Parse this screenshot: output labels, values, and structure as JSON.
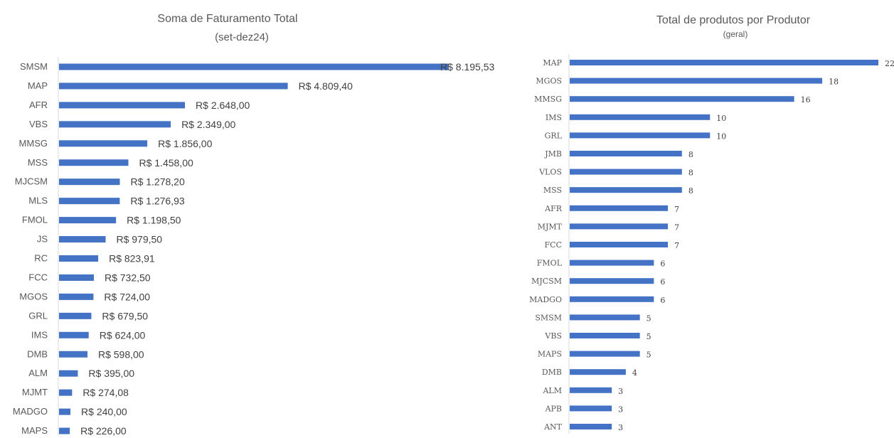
{
  "chart_data": [
    {
      "type": "bar",
      "orientation": "horizontal",
      "title": "Soma de Faturamento Total",
      "subtitle": "(set-dez24)",
      "categories": [
        "SMSM",
        "MAP",
        "AFR",
        "VBS",
        "MMSG",
        "MSS",
        "MJCSM",
        "MLS",
        "FMOL",
        "JS",
        "RC",
        "FCC",
        "MGOS",
        "GRL",
        "IMS",
        "DMB",
        "ALM",
        "MJMT",
        "MADGO",
        "MAPS"
      ],
      "values": [
        8195.53,
        4809.4,
        2648.0,
        2349.0,
        1856.0,
        1458.0,
        1278.2,
        1276.93,
        1198.5,
        979.5,
        823.91,
        732.5,
        724.0,
        679.5,
        624.0,
        598.0,
        395.0,
        274.08,
        240.0,
        226.0
      ],
      "data_labels": [
        "R$ 8.195,53",
        "R$ 4.809,40",
        "R$ 2.648,00",
        "R$ 2.349,00",
        "R$ 1.856,00",
        "R$ 1.458,00",
        "R$ 1.278,20",
        "R$ 1.276,93",
        "R$ 1.198,50",
        "R$ 979,50",
        "R$ 823,91",
        "R$ 732,50",
        "R$ 724,00",
        "R$ 679,50",
        "R$ 624,00",
        "R$ 598,00",
        "R$ 395,00",
        "R$ 274,08",
        "R$ 240,00",
        "R$ 226,00"
      ],
      "xlim": [
        0,
        8195.53
      ],
      "grid": false,
      "bar_color": "#4472C4"
    },
    {
      "type": "bar",
      "orientation": "horizontal",
      "title": "Total de produtos por Produtor",
      "subtitle": "(geral)",
      "categories": [
        "MAP",
        "MGOS",
        "MMSG",
        "IMS",
        "GRL",
        "JMB",
        "VLOS",
        "MSS",
        "AFR",
        "MJMT",
        "FCC",
        "FMOL",
        "MJCSM",
        "MADGO",
        "SMSM",
        "VBS",
        "MAPS",
        "DMB",
        "ALM",
        "APB",
        "ANT"
      ],
      "values": [
        22,
        18,
        16,
        10,
        10,
        8,
        8,
        8,
        7,
        7,
        7,
        6,
        6,
        6,
        5,
        5,
        5,
        4,
        3,
        3,
        3
      ],
      "data_labels": [
        "22",
        "18",
        "16",
        "10",
        "10",
        "8",
        "8",
        "8",
        "7",
        "7",
        "7",
        "6",
        "6",
        "6",
        "5",
        "5",
        "5",
        "4",
        "3",
        "3",
        "3"
      ],
      "xlim": [
        0,
        22
      ],
      "grid": false,
      "bar_color": "#4472C4"
    }
  ]
}
